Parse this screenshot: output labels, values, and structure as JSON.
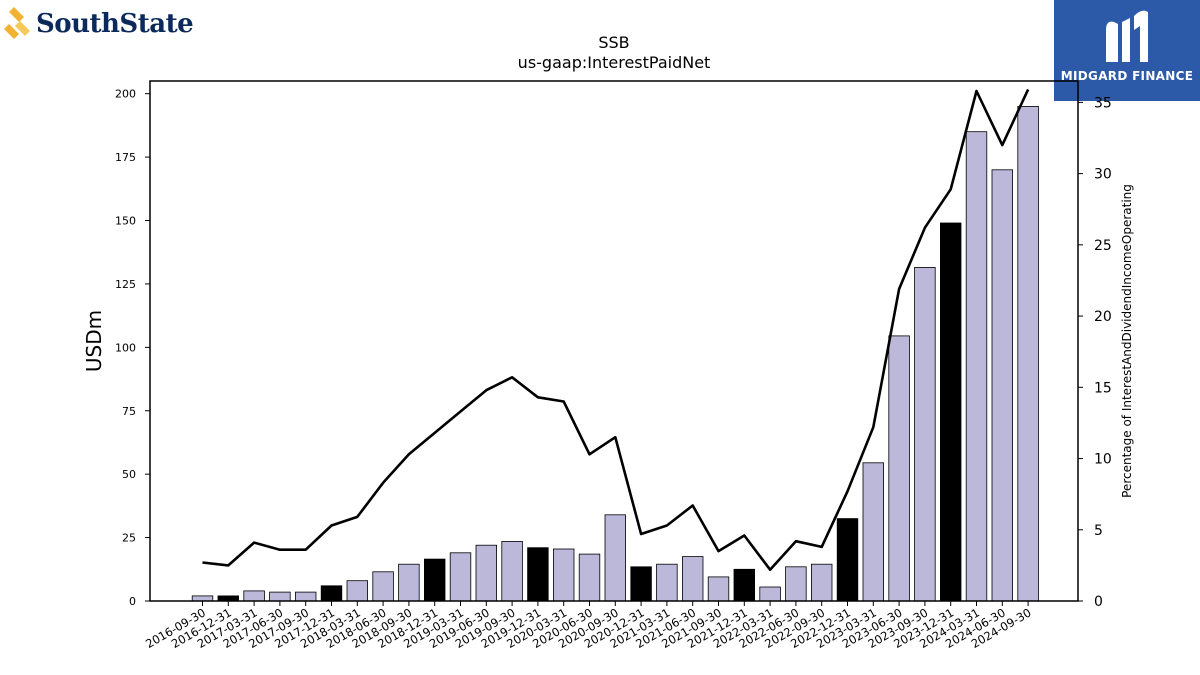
{
  "brand_left": {
    "name": "SouthState"
  },
  "brand_right": {
    "name": "MIDGARD FINANCE"
  },
  "chart_data": {
    "type": "bar",
    "title": "SSB",
    "subtitle": "us-gaap:InterestPaidNet",
    "ylabel": "USDm",
    "y2label": "Percentage of InterestAndDividendIncomeOperating",
    "ylim": [
      0,
      205
    ],
    "y2lim": [
      0,
      36.5
    ],
    "yticks": [
      0,
      25,
      50,
      75,
      100,
      125,
      150,
      175,
      200
    ],
    "y2ticks": [
      0,
      5,
      10,
      15,
      20,
      25,
      30,
      35
    ],
    "categories": [
      "2016-09-30",
      "2016-12-31",
      "2017-03-31",
      "2017-06-30",
      "2017-09-30",
      "2017-12-31",
      "2018-03-31",
      "2018-06-30",
      "2018-09-30",
      "2018-12-31",
      "2019-03-31",
      "2019-06-30",
      "2019-09-30",
      "2019-12-31",
      "2020-03-31",
      "2020-06-30",
      "2020-09-30",
      "2020-12-31",
      "2021-03-31",
      "2021-06-30",
      "2021-09-30",
      "2021-12-31",
      "2022-03-31",
      "2022-06-30",
      "2022-09-30",
      "2022-12-31",
      "2023-03-31",
      "2023-06-30",
      "2023-09-30",
      "2023-12-31",
      "2024-03-31",
      "2024-06-30",
      "2024-09-30"
    ],
    "series": [
      {
        "kind": "bar",
        "values": [
          2.0,
          2.0,
          4.0,
          3.5,
          3.5,
          6.0,
          8.0,
          11.5,
          14.5,
          16.5,
          19.0,
          22.0,
          23.5,
          21.0,
          20.5,
          18.5,
          34.0,
          13.5,
          14.5,
          17.5,
          9.5,
          12.5,
          5.5,
          13.5,
          14.5,
          32.5,
          54.5,
          104.5,
          131.5,
          149.0,
          185.0,
          170.0,
          195.0
        ],
        "highlight": [
          1,
          5,
          9,
          13,
          17,
          21,
          25,
          29
        ],
        "color": "#bcb8da",
        "highlight_color": "#000000"
      },
      {
        "kind": "line",
        "axis": "right",
        "values": [
          2.7,
          2.5,
          4.1,
          3.6,
          3.6,
          5.3,
          5.9,
          8.3,
          10.3,
          11.8,
          13.3,
          14.8,
          15.7,
          14.3,
          14.0,
          10.3,
          11.5,
          4.7,
          5.3,
          6.7,
          3.5,
          4.6,
          2.2,
          4.2,
          3.8,
          7.7,
          12.2,
          21.9,
          26.2,
          28.9,
          35.8,
          32.0,
          35.9
        ],
        "color": "#000000"
      }
    ]
  }
}
